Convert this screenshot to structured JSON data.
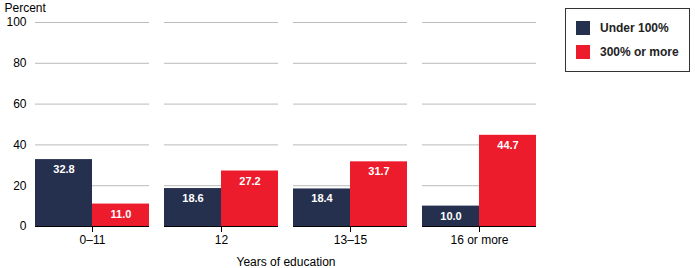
{
  "chart_data": {
    "type": "bar",
    "y_label": "Percent",
    "x_label": "Years of education",
    "categories": [
      "0–11",
      "12",
      "13–15",
      "16 or more"
    ],
    "series": [
      {
        "name": "Under 100%",
        "color": "#25304f",
        "values": [
          32.8,
          18.6,
          18.4,
          10.0
        ],
        "value_labels": [
          "32.8",
          "18.6",
          "18.4",
          "10.0"
        ]
      },
      {
        "name": "300% or more",
        "color": "#ec1c2d",
        "values": [
          11.0,
          27.2,
          31.7,
          44.7
        ],
        "value_labels": [
          "11.0",
          "27.2",
          "31.7",
          "44.7"
        ]
      }
    ],
    "ylim": [
      0,
      100
    ],
    "yticks": [
      0,
      20,
      40,
      60,
      80,
      100
    ],
    "grid": true,
    "legend": "right",
    "data_labels": true
  }
}
